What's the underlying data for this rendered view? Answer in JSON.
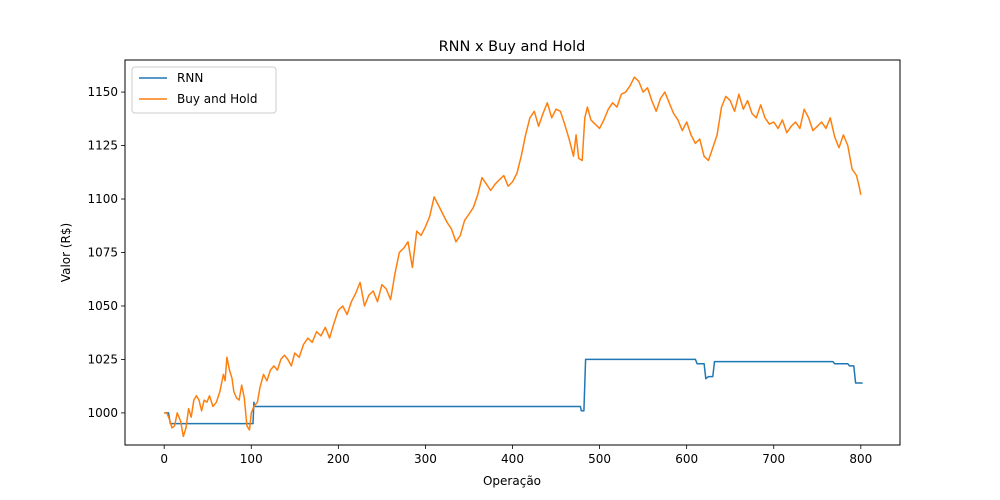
{
  "chart_data": {
    "type": "line",
    "title": "RNN x Buy and Hold",
    "xlabel": "Operação",
    "ylabel": "Valor (R$)",
    "xlim": [
      -45,
      845
    ],
    "ylim": [
      985,
      1165
    ],
    "xticks": [
      0,
      100,
      200,
      300,
      400,
      500,
      600,
      700,
      800
    ],
    "yticks": [
      1000,
      1025,
      1050,
      1075,
      1100,
      1125,
      1150
    ],
    "legend": {
      "position": "top-left"
    },
    "grid": false,
    "series": [
      {
        "name": "RNN",
        "color": "#1f77b4",
        "points": [
          [
            0,
            1000
          ],
          [
            5,
            1000
          ],
          [
            7,
            995
          ],
          [
            25,
            995
          ],
          [
            60,
            995
          ],
          [
            100,
            995
          ],
          [
            102,
            995
          ],
          [
            103,
            1005
          ],
          [
            104,
            1003
          ],
          [
            110,
            1003
          ],
          [
            200,
            1003
          ],
          [
            300,
            1003
          ],
          [
            400,
            1003
          ],
          [
            476,
            1003
          ],
          [
            478,
            1003
          ],
          [
            479,
            1001
          ],
          [
            482,
            1001
          ],
          [
            484,
            1025
          ],
          [
            500,
            1025
          ],
          [
            550,
            1025
          ],
          [
            610,
            1025
          ],
          [
            612,
            1023
          ],
          [
            620,
            1023
          ],
          [
            622,
            1016
          ],
          [
            625,
            1017
          ],
          [
            630,
            1017
          ],
          [
            632,
            1024
          ],
          [
            640,
            1024
          ],
          [
            700,
            1024
          ],
          [
            768,
            1024
          ],
          [
            770,
            1023
          ],
          [
            785,
            1023
          ],
          [
            787,
            1022
          ],
          [
            792,
            1022
          ],
          [
            794,
            1014
          ],
          [
            800,
            1014
          ],
          [
            802,
            1014
          ]
        ]
      },
      {
        "name": "Buy and Hold",
        "color": "#ff7f0e",
        "points": [
          [
            0,
            1000
          ],
          [
            3,
            1000
          ],
          [
            6,
            997
          ],
          [
            9,
            993
          ],
          [
            12,
            994
          ],
          [
            15,
            1000
          ],
          [
            17,
            998
          ],
          [
            19,
            996
          ],
          [
            22,
            989
          ],
          [
            25,
            993
          ],
          [
            28,
            1002
          ],
          [
            31,
            998
          ],
          [
            34,
            1006
          ],
          [
            37,
            1008
          ],
          [
            40,
            1006
          ],
          [
            43,
            1001
          ],
          [
            46,
            1006
          ],
          [
            49,
            1005
          ],
          [
            52,
            1008
          ],
          [
            56,
            1003
          ],
          [
            60,
            1005
          ],
          [
            64,
            1010
          ],
          [
            68,
            1018
          ],
          [
            70,
            1015
          ],
          [
            72,
            1026
          ],
          [
            75,
            1020
          ],
          [
            78,
            1016
          ],
          [
            80,
            1010
          ],
          [
            83,
            1007
          ],
          [
            86,
            1006
          ],
          [
            89,
            1013
          ],
          [
            92,
            1007
          ],
          [
            95,
            994
          ],
          [
            98,
            992
          ],
          [
            100,
            1000
          ],
          [
            103,
            1003
          ],
          [
            107,
            1005
          ],
          [
            110,
            1012
          ],
          [
            114,
            1018
          ],
          [
            118,
            1015
          ],
          [
            122,
            1020
          ],
          [
            126,
            1022
          ],
          [
            130,
            1020
          ],
          [
            134,
            1025
          ],
          [
            138,
            1027
          ],
          [
            142,
            1025
          ],
          [
            146,
            1022
          ],
          [
            150,
            1028
          ],
          [
            155,
            1026
          ],
          [
            160,
            1032
          ],
          [
            165,
            1035
          ],
          [
            170,
            1033
          ],
          [
            175,
            1038
          ],
          [
            180,
            1036
          ],
          [
            185,
            1040
          ],
          [
            190,
            1035
          ],
          [
            195,
            1042
          ],
          [
            200,
            1048
          ],
          [
            205,
            1050
          ],
          [
            210,
            1046
          ],
          [
            215,
            1052
          ],
          [
            220,
            1056
          ],
          [
            225,
            1061
          ],
          [
            230,
            1050
          ],
          [
            235,
            1055
          ],
          [
            240,
            1057
          ],
          [
            245,
            1052
          ],
          [
            250,
            1060
          ],
          [
            255,
            1058
          ],
          [
            260,
            1053
          ],
          [
            265,
            1065
          ],
          [
            270,
            1075
          ],
          [
            275,
            1077
          ],
          [
            280,
            1080
          ],
          [
            285,
            1068
          ],
          [
            290,
            1085
          ],
          [
            295,
            1083
          ],
          [
            300,
            1087
          ],
          [
            305,
            1092
          ],
          [
            310,
            1101
          ],
          [
            315,
            1097
          ],
          [
            320,
            1093
          ],
          [
            325,
            1089
          ],
          [
            330,
            1086
          ],
          [
            335,
            1080
          ],
          [
            340,
            1083
          ],
          [
            345,
            1090
          ],
          [
            350,
            1093
          ],
          [
            355,
            1096
          ],
          [
            360,
            1102
          ],
          [
            365,
            1110
          ],
          [
            370,
            1107
          ],
          [
            375,
            1104
          ],
          [
            380,
            1107
          ],
          [
            385,
            1109
          ],
          [
            390,
            1111
          ],
          [
            395,
            1106
          ],
          [
            400,
            1108
          ],
          [
            405,
            1112
          ],
          [
            410,
            1120
          ],
          [
            415,
            1130
          ],
          [
            420,
            1138
          ],
          [
            425,
            1141
          ],
          [
            430,
            1134
          ],
          [
            435,
            1140
          ],
          [
            440,
            1145
          ],
          [
            445,
            1138
          ],
          [
            450,
            1142
          ],
          [
            455,
            1141
          ],
          [
            460,
            1135
          ],
          [
            465,
            1128
          ],
          [
            470,
            1120
          ],
          [
            473,
            1130
          ],
          [
            476,
            1119
          ],
          [
            480,
            1118
          ],
          [
            483,
            1138
          ],
          [
            486,
            1143
          ],
          [
            490,
            1137
          ],
          [
            495,
            1135
          ],
          [
            500,
            1133
          ],
          [
            505,
            1137
          ],
          [
            510,
            1142
          ],
          [
            515,
            1145
          ],
          [
            520,
            1143
          ],
          [
            525,
            1149
          ],
          [
            530,
            1150
          ],
          [
            535,
            1153
          ],
          [
            540,
            1157
          ],
          [
            545,
            1155
          ],
          [
            550,
            1150
          ],
          [
            555,
            1152
          ],
          [
            560,
            1146
          ],
          [
            565,
            1141
          ],
          [
            570,
            1147
          ],
          [
            575,
            1150
          ],
          [
            580,
            1145
          ],
          [
            585,
            1140
          ],
          [
            590,
            1137
          ],
          [
            595,
            1132
          ],
          [
            600,
            1136
          ],
          [
            605,
            1130
          ],
          [
            610,
            1126
          ],
          [
            615,
            1128
          ],
          [
            620,
            1120
          ],
          [
            625,
            1118
          ],
          [
            630,
            1124
          ],
          [
            635,
            1130
          ],
          [
            640,
            1143
          ],
          [
            645,
            1148
          ],
          [
            650,
            1146
          ],
          [
            655,
            1141
          ],
          [
            660,
            1149
          ],
          [
            665,
            1142
          ],
          [
            670,
            1146
          ],
          [
            675,
            1140
          ],
          [
            680,
            1138
          ],
          [
            685,
            1144
          ],
          [
            690,
            1138
          ],
          [
            695,
            1135
          ],
          [
            700,
            1136
          ],
          [
            705,
            1133
          ],
          [
            710,
            1137
          ],
          [
            715,
            1131
          ],
          [
            720,
            1134
          ],
          [
            725,
            1136
          ],
          [
            730,
            1133
          ],
          [
            735,
            1142
          ],
          [
            740,
            1138
          ],
          [
            745,
            1132
          ],
          [
            750,
            1134
          ],
          [
            755,
            1136
          ],
          [
            760,
            1133
          ],
          [
            765,
            1138
          ],
          [
            770,
            1129
          ],
          [
            775,
            1124
          ],
          [
            780,
            1130
          ],
          [
            785,
            1125
          ],
          [
            790,
            1114
          ],
          [
            795,
            1111
          ],
          [
            798,
            1106
          ],
          [
            800,
            1102
          ]
        ]
      }
    ]
  }
}
